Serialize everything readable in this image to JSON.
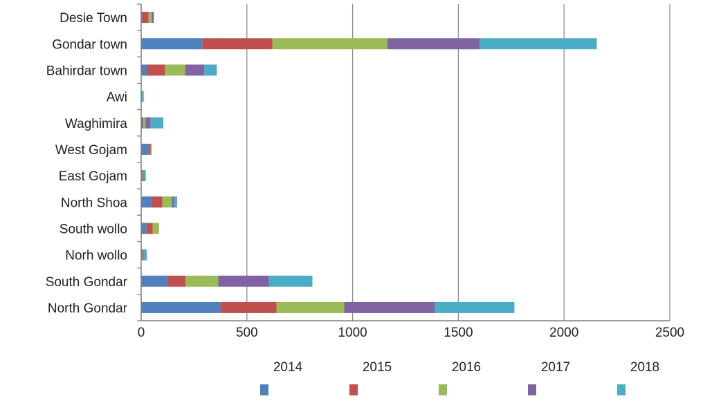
{
  "chart_data": {
    "type": "bar",
    "orientation": "horizontal",
    "stacked": true,
    "title": "",
    "xlabel": "",
    "ylabel": "",
    "xlim": [
      0,
      2500
    ],
    "x_ticks": [
      0,
      500,
      1000,
      1500,
      2000,
      2500
    ],
    "grid": "vertical",
    "legend_position": "bottom",
    "categories": [
      "North Gondar",
      "South Gondar",
      "Norh wollo",
      "South wollo",
      "North Shoa",
      "East Gojam",
      "West Gojam",
      "Waghimira",
      "Awi",
      "Bahirdar town",
      "Gondar town",
      "Desie Town"
    ],
    "series": [
      {
        "name": "2014",
        "color": "#4f81bd",
        "values": [
          375,
          125,
          3,
          25,
          50,
          3,
          35,
          5,
          0,
          28,
          290,
          5
        ]
      },
      {
        "name": "2015",
        "color": "#c0504d",
        "values": [
          265,
          85,
          2,
          30,
          50,
          2,
          10,
          5,
          0,
          85,
          330,
          30
        ]
      },
      {
        "name": "2016",
        "color": "#9bbb59",
        "values": [
          320,
          155,
          2,
          30,
          45,
          2,
          5,
          10,
          0,
          95,
          545,
          15
        ]
      },
      {
        "name": "2017",
        "color": "#8064a2",
        "values": [
          430,
          240,
          5,
          0,
          10,
          5,
          0,
          25,
          0,
          90,
          435,
          10
        ]
      },
      {
        "name": "2018",
        "color": "#4bacc6",
        "values": [
          375,
          205,
          15,
          0,
          15,
          10,
          0,
          60,
          12,
          60,
          555,
          0
        ]
      }
    ]
  }
}
